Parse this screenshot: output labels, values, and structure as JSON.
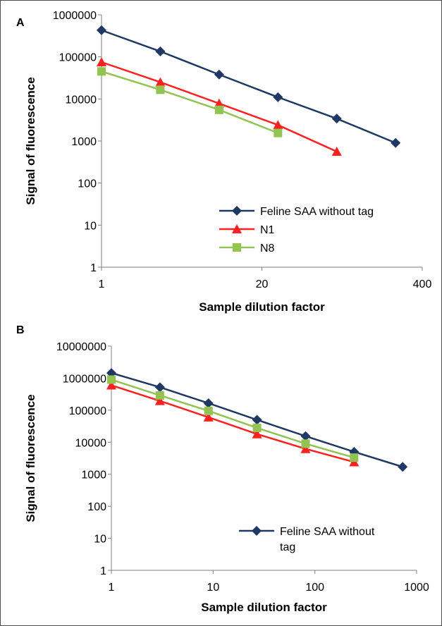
{
  "chart_data": [
    {
      "type": "line",
      "panel_label": "A",
      "xlabel": "Sample dilution factor",
      "ylabel": "Signal of fluorescence",
      "x_scale": "log",
      "y_scale": "log",
      "xlim": [
        1,
        400
      ],
      "ylim": [
        1,
        1000000
      ],
      "x_ticks": [
        1,
        20,
        400
      ],
      "x_tick_labels": [
        "1",
        "20",
        "400"
      ],
      "y_ticks": [
        1,
        10,
        100,
        1000,
        10000,
        100000,
        1000000
      ],
      "y_tick_labels": [
        "1",
        "10",
        "100",
        "1000",
        "10000",
        "100000",
        "1000000"
      ],
      "legend_position": "bottom-right",
      "series": [
        {
          "name": "Feline SAA without tag",
          "color": "#1f3864",
          "marker": "diamond",
          "x": [
            1,
            3,
            9,
            27,
            81,
            243
          ],
          "y": [
            430000,
            135000,
            38000,
            11000,
            3400,
            900
          ]
        },
        {
          "name": "N1",
          "color": "#ff2020",
          "marker": "triangle",
          "x": [
            1,
            3,
            9,
            27,
            81
          ],
          "y": [
            75000,
            25000,
            7800,
            2400,
            560
          ]
        },
        {
          "name": "N8",
          "color": "#92c353",
          "marker": "square",
          "x": [
            1,
            3,
            9,
            27
          ],
          "y": [
            45000,
            16500,
            5500,
            1550
          ]
        }
      ]
    },
    {
      "type": "line",
      "panel_label": "B",
      "xlabel": "Sample dilution factor",
      "ylabel": "Signal of fluorescence",
      "x_scale": "log",
      "y_scale": "log",
      "xlim": [
        1,
        1000
      ],
      "ylim": [
        1,
        10000000
      ],
      "x_ticks": [
        1,
        10,
        100,
        1000
      ],
      "x_tick_labels": [
        "1",
        "10",
        "100",
        "1000"
      ],
      "y_ticks": [
        1,
        10,
        100,
        1000,
        10000,
        100000,
        1000000,
        10000000
      ],
      "y_tick_labels": [
        "1",
        "10",
        "100",
        "1000",
        "10000",
        "100000",
        "1000000",
        "10000000"
      ],
      "legend_position": "bottom-right",
      "series": [
        {
          "name": "Feline SAA without tag",
          "color": "#1f3864",
          "marker": "diamond",
          "x": [
            1,
            3,
            9,
            27,
            81,
            243,
            729
          ],
          "y": [
            1450000,
            520000,
            165000,
            50000,
            15500,
            5000,
            1700
          ]
        },
        {
          "color": "#ff2020",
          "marker": "triangle",
          "x": [
            1,
            3,
            9,
            27,
            81,
            243
          ],
          "y": [
            600000,
            195000,
            60000,
            18000,
            6200,
            2400
          ]
        },
        {
          "color": "#92c353",
          "marker": "square",
          "x": [
            1,
            3,
            9,
            27,
            81,
            243
          ],
          "y": [
            900000,
            290000,
            95000,
            28000,
            9000,
            3300
          ]
        }
      ]
    }
  ]
}
